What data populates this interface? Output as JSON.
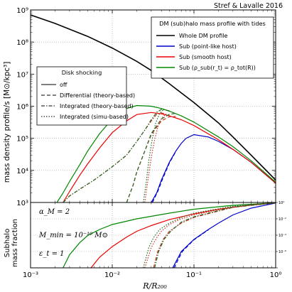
{
  "credit": "Stref & Lavalle 2016",
  "chart_data": [
    {
      "type": "line",
      "xscale": "log",
      "yscale": "log",
      "xlim": [
        0.001,
        1
      ],
      "ylim": [
        1000,
        1000000000
      ],
      "ylabel": "mass density profile/s [M⊙/kpc³]",
      "grid": true,
      "x_ticks": [
        "10⁻³",
        "10⁻²",
        "10⁻¹",
        "10⁰"
      ],
      "y_ticks": [
        "10³",
        "10⁴",
        "10⁵",
        "10⁶",
        "10⁷",
        "10⁸",
        "10⁹"
      ],
      "legend_tides": {
        "title": "DM (sub)halo mass profile with tides",
        "position": "top-right",
        "entries": [
          {
            "label": "Whole DM profile",
            "color": "#000000"
          },
          {
            "label": "Sub (point-like host)",
            "color": "#0000cc"
          },
          {
            "label": "Sub (smooth host)",
            "color": "#ee0000"
          },
          {
            "label": "Sub (ρ_sub(r_t) = ρ_tot(R))",
            "color": "#008800"
          }
        ]
      },
      "legend_shocking": {
        "title": "Disk shocking",
        "position": "center-left",
        "entries": [
          {
            "label": "off",
            "style": "solid"
          },
          {
            "label": "Differential (theory-based)",
            "style": "dashed"
          },
          {
            "label": "Integrated (theory-based)",
            "style": "dashdot"
          },
          {
            "label": "Integrated (simu-based)",
            "style": "dotted"
          }
        ]
      },
      "series": [
        {
          "key": "whole",
          "color": "#000000",
          "style": "solid",
          "points": [
            [
              0.001,
              700000000
            ],
            [
              0.002,
              380000000
            ],
            [
              0.005,
              150000000
            ],
            [
              0.01,
              65000000
            ],
            [
              0.02,
              25000000
            ],
            [
              0.03,
              13000000
            ],
            [
              0.05,
              5000000
            ],
            [
              0.1,
              1300000
            ],
            [
              0.2,
              300000
            ],
            [
              0.3,
              110000
            ],
            [
              0.5,
              30000
            ],
            [
              1,
              5000
            ]
          ]
        },
        {
          "key": "blue-off",
          "color": "#0000cc",
          "style": "solid",
          "points": [
            [
              0.03,
              1000
            ],
            [
              0.035,
              2000
            ],
            [
              0.04,
              5000
            ],
            [
              0.05,
              18000
            ],
            [
              0.06,
              40000
            ],
            [
              0.07,
              70000
            ],
            [
              0.08,
              100000
            ],
            [
              0.1,
              130000
            ],
            [
              0.15,
              110000
            ],
            [
              0.2,
              80000
            ],
            [
              0.3,
              45000
            ],
            [
              0.5,
              18000
            ],
            [
              1,
              4000
            ]
          ]
        },
        {
          "key": "blue-diff",
          "color": "#0000cc",
          "style": "dashed",
          "points": [
            [
              0.031,
              1000
            ],
            [
              0.036,
              2200
            ],
            [
              0.041,
              5200
            ],
            [
              0.05,
              17000
            ],
            [
              0.06,
              39000
            ]
          ]
        },
        {
          "key": "red-off",
          "color": "#ee0000",
          "style": "solid",
          "points": [
            [
              0.0025,
              1000
            ],
            [
              0.003,
              2200
            ],
            [
              0.004,
              7000
            ],
            [
              0.005,
              16000
            ],
            [
              0.007,
              50000
            ],
            [
              0.01,
              150000
            ],
            [
              0.015,
              350000
            ],
            [
              0.02,
              550000
            ],
            [
              0.03,
              640000
            ],
            [
              0.04,
              580000
            ],
            [
              0.05,
              500000
            ],
            [
              0.07,
              380000
            ],
            [
              0.1,
              250000
            ],
            [
              0.2,
              90000
            ],
            [
              0.3,
              45000
            ],
            [
              0.5,
              18000
            ],
            [
              1,
              4000
            ]
          ]
        },
        {
          "key": "green-off",
          "color": "#008800",
          "style": "solid",
          "points": [
            [
              0.0021,
              1000
            ],
            [
              0.0025,
              2000
            ],
            [
              0.003,
              4500
            ],
            [
              0.004,
              15000
            ],
            [
              0.005,
              40000
            ],
            [
              0.007,
              140000
            ],
            [
              0.01,
              400000
            ],
            [
              0.015,
              850000
            ],
            [
              0.02,
              1050000
            ],
            [
              0.03,
              1000000
            ],
            [
              0.04,
              850000
            ],
            [
              0.05,
              700000
            ],
            [
              0.07,
              500000
            ],
            [
              0.1,
              320000
            ],
            [
              0.2,
              110000
            ],
            [
              0.3,
              55000
            ],
            [
              0.5,
              20000
            ],
            [
              1,
              4300
            ]
          ]
        },
        {
          "key": "red-dashdot",
          "color": "#cc3322",
          "style": "dashdot",
          "points": [
            [
              0.0025,
              1000
            ],
            [
              0.003,
              1600
            ],
            [
              0.004,
              2600
            ],
            [
              0.006,
              5000
            ],
            [
              0.01,
              13000
            ],
            [
              0.015,
              30000
            ],
            [
              0.02,
              80000
            ],
            [
              0.025,
              180000
            ],
            [
              0.03,
              350000
            ],
            [
              0.035,
              560000
            ],
            [
              0.04,
              620000
            ],
            [
              0.05,
              520000
            ]
          ]
        },
        {
          "key": "green-dashdot",
          "color": "#226622",
          "style": "dashdot",
          "points": [
            [
              0.0025,
              1000
            ],
            [
              0.003,
              1600
            ],
            [
              0.004,
              2600
            ],
            [
              0.006,
              5000
            ],
            [
              0.01,
              13000
            ],
            [
              0.015,
              30000
            ],
            [
              0.02,
              80000
            ],
            [
              0.025,
              180000
            ],
            [
              0.03,
              380000
            ],
            [
              0.035,
              650000
            ],
            [
              0.04,
              800000
            ],
            [
              0.05,
              720000
            ]
          ]
        },
        {
          "key": "red-dashed",
          "color": "#cc3322",
          "style": "dashed",
          "points": [
            [
              0.015,
              1000
            ],
            [
              0.018,
              3500
            ],
            [
              0.02,
              9000
            ],
            [
              0.025,
              40000
            ],
            [
              0.03,
              130000
            ],
            [
              0.04,
              350000
            ],
            [
              0.05,
              470000
            ],
            [
              0.06,
              480000
            ]
          ]
        },
        {
          "key": "green-dashed",
          "color": "#226622",
          "style": "dashed",
          "points": [
            [
              0.015,
              1000
            ],
            [
              0.018,
              3500
            ],
            [
              0.02,
              9000
            ],
            [
              0.025,
              40000
            ],
            [
              0.03,
              140000
            ],
            [
              0.04,
              400000
            ],
            [
              0.05,
              560000
            ],
            [
              0.06,
              600000
            ]
          ]
        },
        {
          "key": "red-dotted",
          "color": "#cc3322",
          "style": "dotted",
          "points": [
            [
              0.025,
              1000
            ],
            [
              0.027,
              4000
            ],
            [
              0.03,
              25000
            ],
            [
              0.033,
              90000
            ],
            [
              0.036,
              220000
            ],
            [
              0.04,
              420000
            ],
            [
              0.045,
              560000
            ]
          ]
        },
        {
          "key": "green-dotted",
          "color": "#226622",
          "style": "dotted",
          "points": [
            [
              0.024,
              1000
            ],
            [
              0.026,
              4000
            ],
            [
              0.028,
              20000
            ],
            [
              0.031,
              100000
            ],
            [
              0.034,
              300000
            ],
            [
              0.038,
              600000
            ],
            [
              0.042,
              780000
            ]
          ]
        }
      ]
    },
    {
      "type": "line",
      "xscale": "log",
      "yscale": "log",
      "xlim": [
        0.001,
        1
      ],
      "ylim": [
        1e-08,
        1
      ],
      "xlabel": "R/R₂₀₀",
      "ylabel": "Subhalo mass fraction",
      "grid": true,
      "x_ticks": [
        "10⁻³",
        "10⁻²",
        "10⁻¹",
        "10⁰"
      ],
      "right_ticks": [
        "10⁻⁸",
        "10⁻⁶",
        "10⁻⁴",
        "10⁻²",
        "10⁰"
      ],
      "annotations": [
        "α_M = 2",
        "M_min = 10⁻¹⁰ M⊙",
        "ε_t = 1"
      ],
      "series": [
        {
          "key": "green",
          "color": "#008800",
          "style": "solid",
          "points": [
            [
              0.0025,
              1e-08
            ],
            [
              0.003,
              4e-07
            ],
            [
              0.004,
              1.2e-05
            ],
            [
              0.005,
              9e-05
            ],
            [
              0.007,
              0.0005
            ],
            [
              0.01,
              0.002
            ],
            [
              0.02,
              0.01
            ],
            [
              0.05,
              0.05
            ],
            [
              0.1,
              0.15
            ],
            [
              0.3,
              0.45
            ],
            [
              1,
              0.9
            ]
          ]
        },
        {
          "key": "red",
          "color": "#ee0000",
          "style": "solid",
          "points": [
            [
              0.0055,
              1e-08
            ],
            [
              0.007,
              2e-07
            ],
            [
              0.01,
              4e-06
            ],
            [
              0.015,
              6e-05
            ],
            [
              0.02,
              0.0003
            ],
            [
              0.03,
              0.0015
            ],
            [
              0.05,
              0.008
            ],
            [
              0.1,
              0.04
            ],
            [
              0.2,
              0.15
            ],
            [
              0.5,
              0.5
            ],
            [
              1,
              0.9
            ]
          ]
        },
        {
          "key": "blue",
          "color": "#0000cc",
          "style": "solid",
          "points": [
            [
              0.055,
              1e-08
            ],
            [
              0.07,
              1e-06
            ],
            [
              0.1,
              3e-05
            ],
            [
              0.15,
              0.0005
            ],
            [
              0.2,
              0.003
            ],
            [
              0.3,
              0.03
            ],
            [
              0.5,
              0.2
            ],
            [
              1,
              0.85
            ]
          ]
        },
        {
          "key": "red-dotted",
          "color": "#cc3322",
          "style": "dotted",
          "points": [
            [
              0.025,
              1e-08
            ],
            [
              0.03,
              3e-06
            ],
            [
              0.035,
              5e-05
            ],
            [
              0.04,
              0.0003
            ],
            [
              0.05,
              0.002
            ],
            [
              0.07,
              0.01
            ],
            [
              0.1,
              0.03
            ],
            [
              0.3,
              0.3
            ],
            [
              1,
              0.9
            ]
          ]
        },
        {
          "key": "green-dotted",
          "color": "#226622",
          "style": "dotted",
          "points": [
            [
              0.024,
              1e-08
            ],
            [
              0.028,
              3e-06
            ],
            [
              0.032,
              5e-05
            ],
            [
              0.038,
              0.0005
            ],
            [
              0.05,
              0.003
            ],
            [
              0.07,
              0.015
            ],
            [
              0.1,
              0.05
            ],
            [
              0.3,
              0.35
            ],
            [
              1,
              0.9
            ]
          ]
        },
        {
          "key": "red-dashdot",
          "color": "#cc3322",
          "style": "dashdot",
          "points": [
            [
              0.032,
              1e-08
            ],
            [
              0.036,
              1e-06
            ],
            [
              0.042,
              3e-05
            ],
            [
              0.05,
              0.0003
            ],
            [
              0.07,
              0.003
            ],
            [
              0.1,
              0.015
            ],
            [
              0.3,
              0.25
            ],
            [
              1,
              0.9
            ]
          ]
        },
        {
          "key": "green-dashdot",
          "color": "#226622",
          "style": "dashdot",
          "points": [
            [
              0.033,
              1e-08
            ],
            [
              0.037,
              1e-06
            ],
            [
              0.043,
              3e-05
            ],
            [
              0.052,
              0.0003
            ],
            [
              0.07,
              0.004
            ],
            [
              0.1,
              0.018
            ],
            [
              0.3,
              0.28
            ],
            [
              1,
              0.9
            ]
          ]
        },
        {
          "key": "blue-dashed",
          "color": "#0000cc",
          "style": "dashed",
          "points": [
            [
              0.057,
              1e-08
            ],
            [
              0.072,
              1e-06
            ],
            [
              0.1,
              2.7e-05
            ],
            [
              0.15,
              0.00045
            ]
          ]
        }
      ]
    }
  ]
}
